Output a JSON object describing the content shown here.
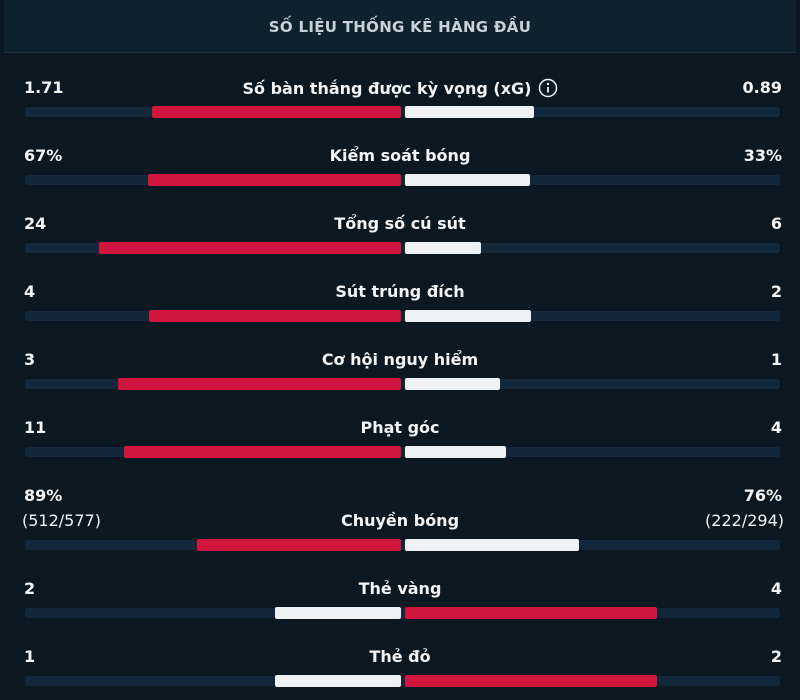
{
  "header": {
    "title": "SỐ LIỆU THỐNG KÊ HÀNG ĐẦU"
  },
  "stats": [
    {
      "label": "Số bàn thắng được kỳ vọng (xG)",
      "home": 1.71,
      "away": 0.89
    },
    {
      "label": "Kiểm soát bóng",
      "home": 67,
      "away": 33,
      "home_label": "67%",
      "away_label": "33%"
    },
    {
      "label": "Tổng số cú sút",
      "home": 24,
      "away": 6
    },
    {
      "label": "Sút trúng đích",
      "home": 4,
      "away": 2
    },
    {
      "label": "Cơ hội nguy hiểm",
      "home": 3,
      "away": 1
    },
    {
      "label": "Phạt góc",
      "home": 11,
      "away": 4
    },
    {
      "label": "Chuyền bóng",
      "home": 89,
      "away": 76,
      "home_label": "89%",
      "away_label": "76%",
      "home_detail": "(512/577)",
      "away_detail": "(222/294)"
    },
    {
      "label": "Thẻ vàng",
      "home": 2,
      "away": 4
    },
    {
      "label": "Thẻ đỏ",
      "home": 1,
      "away": 2
    }
  ]
}
